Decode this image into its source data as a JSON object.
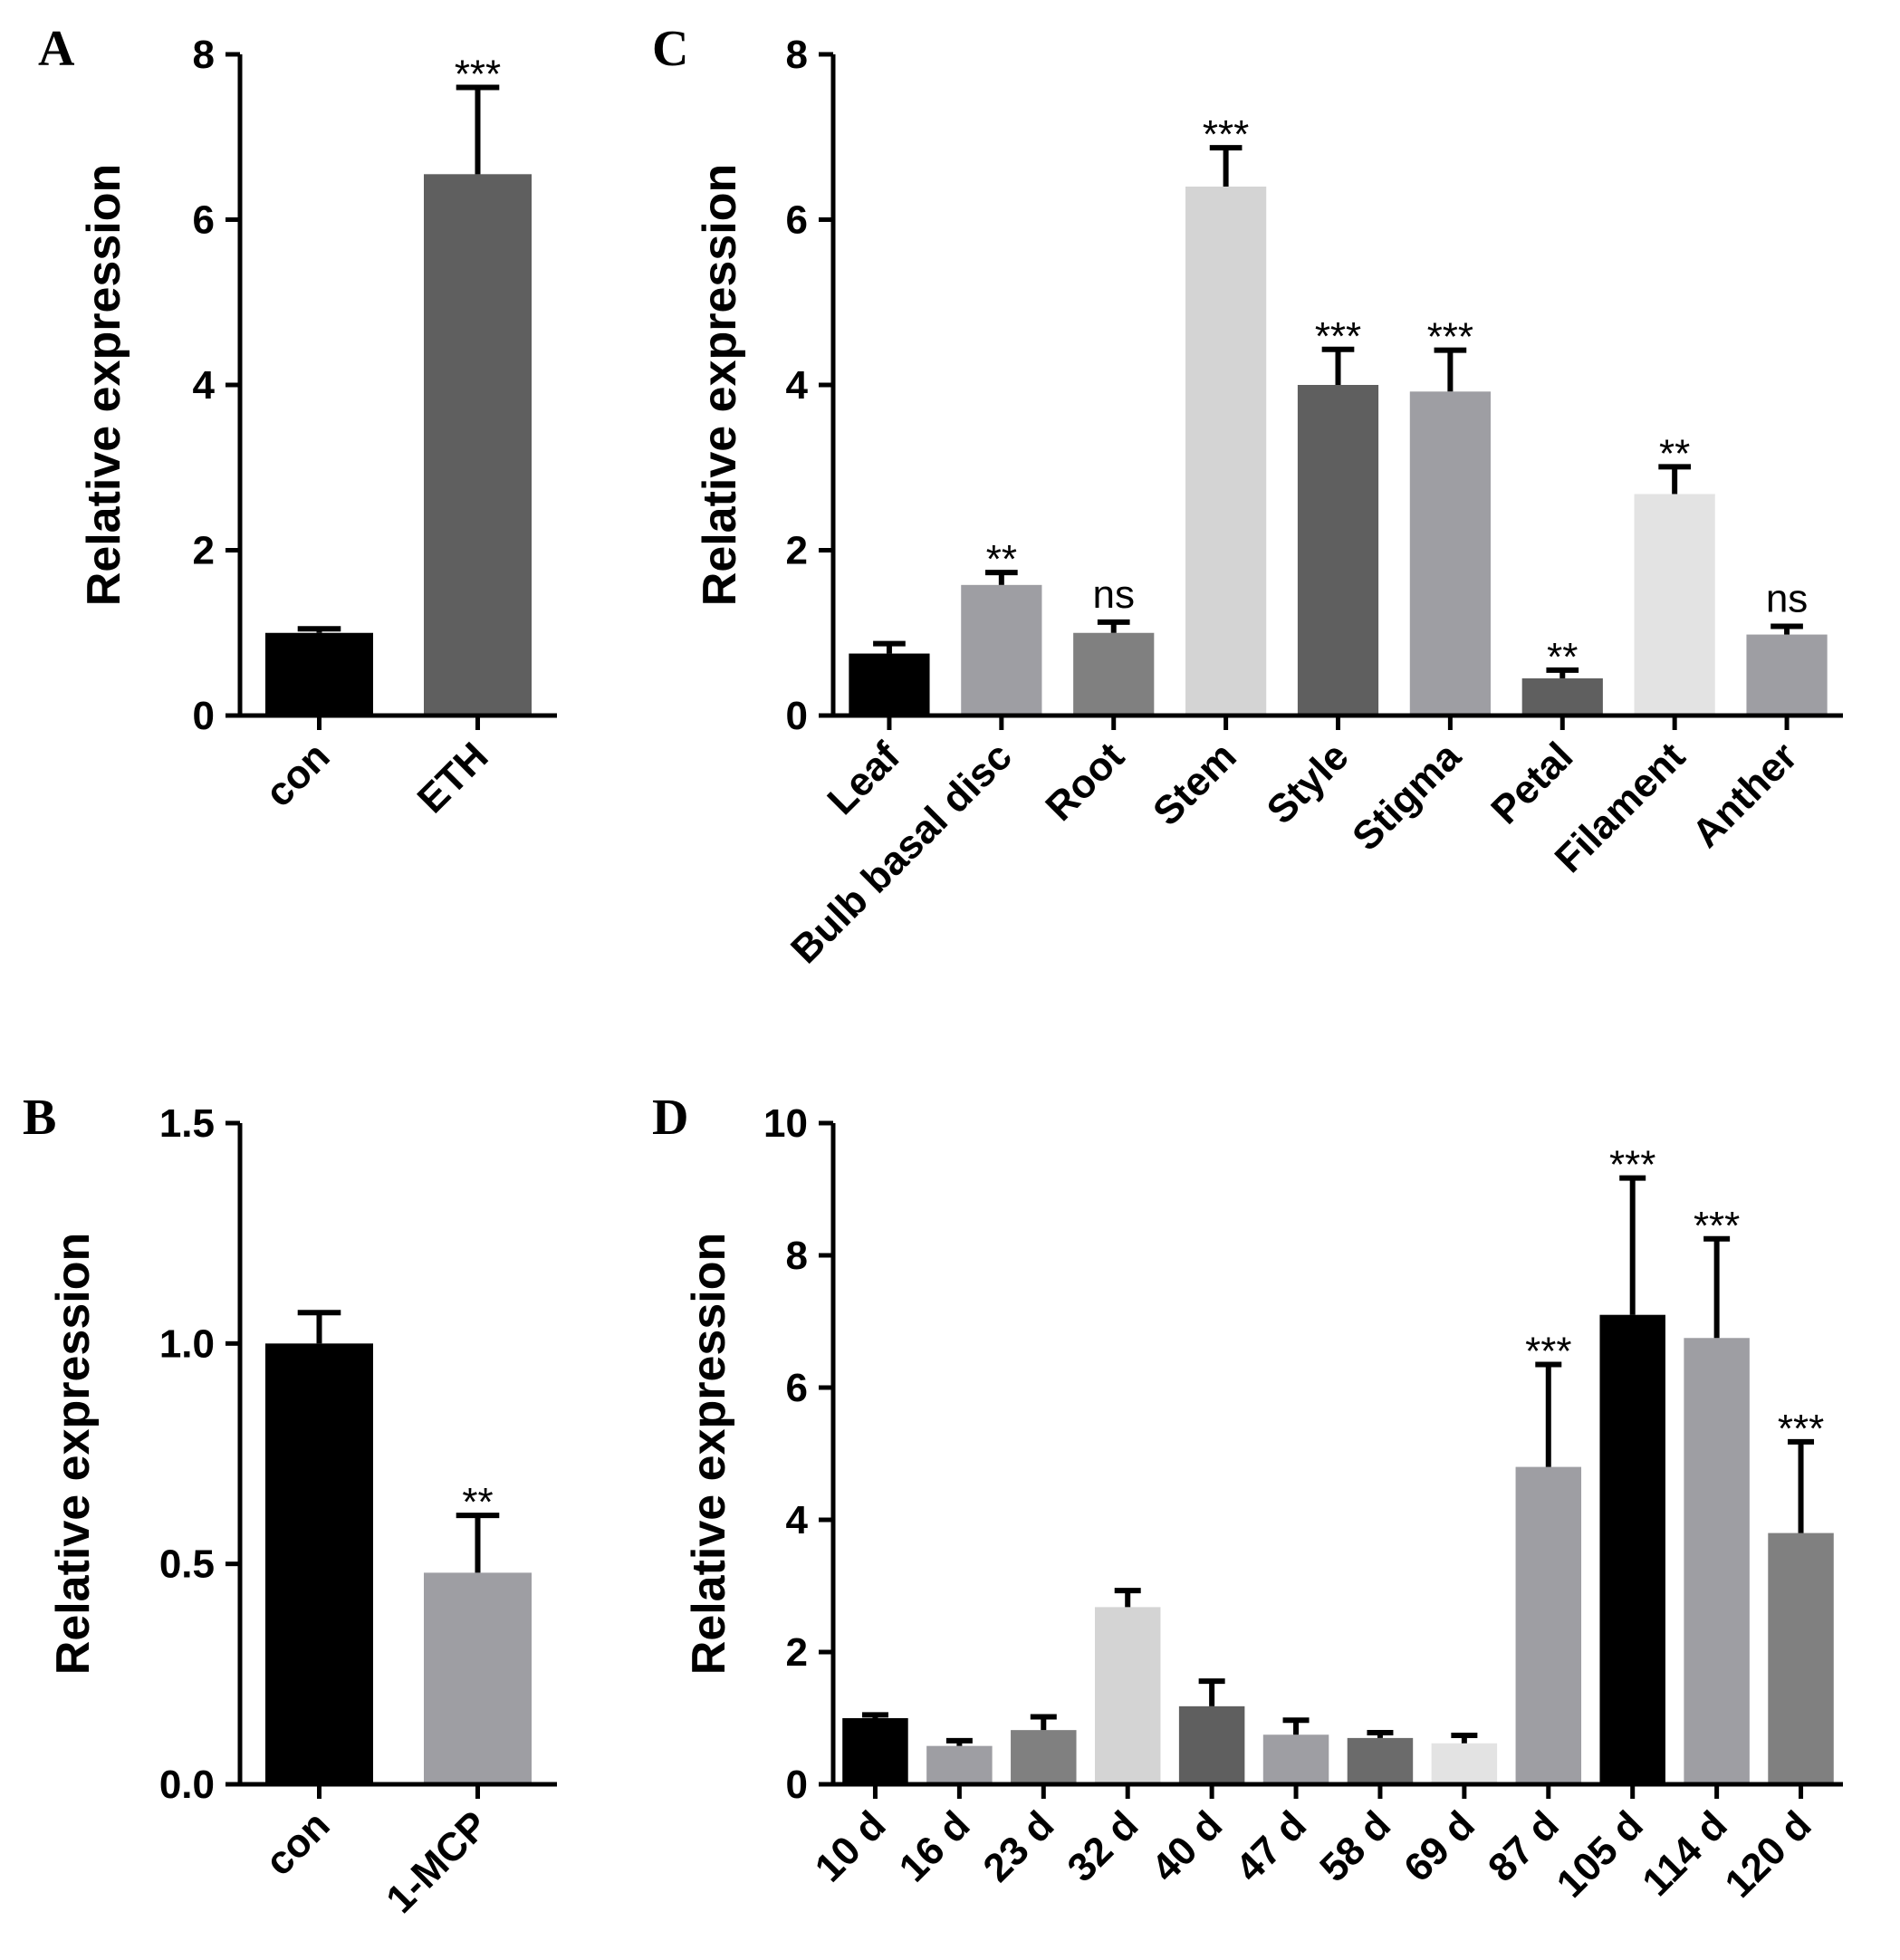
{
  "chart_data": [
    {
      "panel": "A",
      "type": "bar",
      "ylabel": "Relative expression",
      "ylim": [
        0,
        8
      ],
      "yticks": [
        0,
        2,
        4,
        6,
        8
      ],
      "ytick_labels": [
        "0",
        "2",
        "4",
        "6",
        "8"
      ],
      "categories": [
        "con",
        "ETH"
      ],
      "values": [
        1.0,
        6.55
      ],
      "errors": [
        0.05,
        1.05
      ],
      "significance": [
        "",
        "***"
      ],
      "colors": [
        "#000000",
        "#5f5f5f"
      ]
    },
    {
      "panel": "B",
      "type": "bar",
      "ylabel": "Relative expression",
      "ylim": [
        0,
        1.5
      ],
      "yticks": [
        0,
        0.5,
        1.0,
        1.5
      ],
      "ytick_labels": [
        "0.0",
        "0.5",
        "1.0",
        "1.5"
      ],
      "categories": [
        "con",
        "1-MCP"
      ],
      "values": [
        1.0,
        0.48
      ],
      "errors": [
        0.07,
        0.13
      ],
      "significance": [
        "",
        "**"
      ],
      "colors": [
        "#000000",
        "#9e9ea3"
      ]
    },
    {
      "panel": "C",
      "type": "bar",
      "ylabel": "Relative expression",
      "ylim": [
        0,
        8
      ],
      "yticks": [
        0,
        2,
        4,
        6,
        8
      ],
      "ytick_labels": [
        "0",
        "2",
        "4",
        "6",
        "8"
      ],
      "categories": [
        "Leaf",
        "Bulb basal disc",
        "Root",
        "Stem",
        "Style",
        "Stigma",
        "Petal",
        "Filament",
        "Anther"
      ],
      "values": [
        0.75,
        1.58,
        1.0,
        6.4,
        4.0,
        3.92,
        0.45,
        2.68,
        0.98
      ],
      "errors": [
        0.12,
        0.15,
        0.13,
        0.47,
        0.43,
        0.5,
        0.1,
        0.33,
        0.1
      ],
      "significance": [
        "",
        "**",
        "ns",
        "***",
        "***",
        "***",
        "**",
        "**",
        "ns"
      ],
      "colors": [
        "#000000",
        "#9e9ea3",
        "#808080",
        "#d4d4d4",
        "#5f5f5f",
        "#9e9ea3",
        "#5f5f5f",
        "#e3e3e3",
        "#9e9ea3"
      ]
    },
    {
      "panel": "D",
      "type": "bar",
      "ylabel": "Relative expression",
      "ylim": [
        0,
        10
      ],
      "yticks": [
        0,
        2,
        4,
        6,
        8,
        10
      ],
      "ytick_labels": [
        "0",
        "2",
        "4",
        "6",
        "8",
        "10"
      ],
      "categories": [
        "10 d",
        "16 d",
        "23 d",
        "32 d",
        "40 d",
        "47 d",
        "58 d",
        "69 d",
        "87 d",
        "105 d",
        "114 d",
        "120 d"
      ],
      "values": [
        1.0,
        0.58,
        0.82,
        2.68,
        1.18,
        0.75,
        0.7,
        0.62,
        4.8,
        7.1,
        6.75,
        3.8
      ],
      "errors": [
        0.05,
        0.08,
        0.2,
        0.25,
        0.38,
        0.22,
        0.08,
        0.12,
        1.55,
        2.07,
        1.5,
        1.38
      ],
      "significance": [
        "",
        "",
        "",
        "",
        "",
        "",
        "",
        "",
        "***",
        "***",
        "***",
        "***"
      ],
      "colors": [
        "#000000",
        "#9e9ea3",
        "#808080",
        "#d4d4d4",
        "#5f5f5f",
        "#9e9ea3",
        "#6b6b6b",
        "#e3e3e3",
        "#9e9ea3",
        "#000000",
        "#9e9ea3",
        "#808080"
      ]
    }
  ]
}
